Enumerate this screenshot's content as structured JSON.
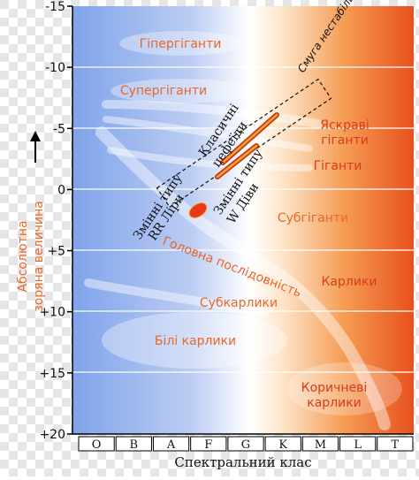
{
  "diagram": {
    "y_axis": {
      "label_line1": "Абсолютна",
      "label_line2": "зоряна величина",
      "ticks": [
        "-15",
        "-10",
        "-5",
        "0",
        "+5",
        "+10",
        "+15",
        "+20"
      ]
    },
    "x_axis": {
      "label": "Спектральний клас",
      "classes": [
        "O",
        "B",
        "A",
        "F",
        "G",
        "K",
        "M",
        "L",
        "T"
      ]
    },
    "regions": {
      "hypergiants": "Гіпергіганти",
      "supergiants": "Супергіганти",
      "bright_giants_line1": "Яскраві",
      "bright_giants_line2": "гіганти",
      "giants": "Гіганти",
      "subgiants": "Субгіганти",
      "main_sequence": "Головна послідовність",
      "dwarfs": "Карлики",
      "subdwarfs": "Субкарлики",
      "white_dwarfs": "Білі карлики",
      "brown_dwarfs_line1": "Коричневі",
      "brown_dwarfs_line2": "карлики"
    },
    "variables": {
      "instability_strip": "Смуга нестабільності",
      "classical_cepheids_line1": "Класичні",
      "classical_cepheids_line2": "цефеїди",
      "w_virginis_line1": "Змінні типу",
      "w_virginis_line2": "W Діви",
      "rr_lyrae_line1": "Змінні типу",
      "rr_lyrae_line2": "RR Ліри"
    },
    "colors": {
      "blue": "#7fa3ea",
      "white": "#ffffff",
      "orange": "#f07a2a",
      "red": "#e8381a",
      "label_orange": "#e8672a",
      "label_red": "#d63c1e"
    }
  }
}
